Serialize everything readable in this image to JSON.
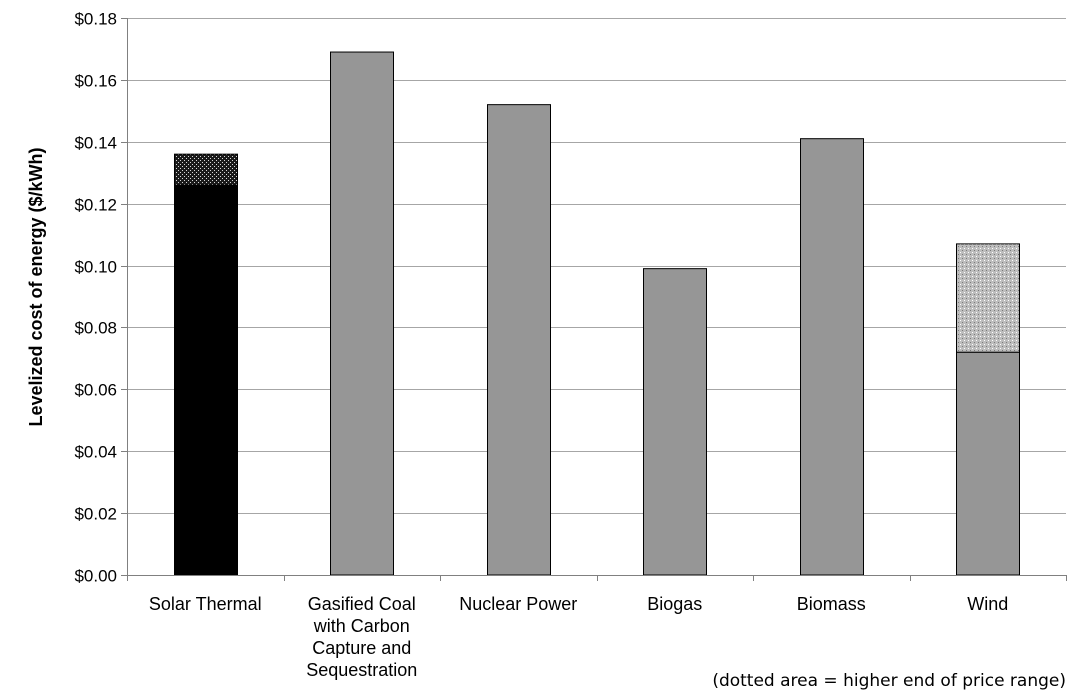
{
  "chart_data": {
    "type": "bar",
    "title": "",
    "xlabel": "",
    "ylabel": "Levelized cost of energy ($/kWh)",
    "ylim": [
      0,
      0.18
    ],
    "yticks": [
      0,
      0.02,
      0.04,
      0.06,
      0.08,
      0.1,
      0.12,
      0.14,
      0.16,
      0.18
    ],
    "ytick_labels": [
      "$0.00",
      "$0.02",
      "$0.04",
      "$0.06",
      "$0.08",
      "$0.10",
      "$0.12",
      "$0.14",
      "$0.16",
      "$0.18"
    ],
    "grid": true,
    "categories": [
      [
        "Solar Thermal"
      ],
      [
        "Gasified Coal",
        "with Carbon",
        "Capture and",
        "Sequestration"
      ],
      [
        "Nuclear Power"
      ],
      [
        "Biogas"
      ],
      [
        "Biomass"
      ],
      [
        "Wind"
      ]
    ],
    "series": [
      {
        "values": [
          0.126,
          0.169,
          0.152,
          0.099,
          0.141,
          0.072
        ]
      },
      {
        "values": [
          0.01,
          0,
          0,
          0,
          0,
          0.035
        ]
      }
    ],
    "annotation": "(dotted area = higher end of price range)"
  },
  "colors": {
    "solar": "#000000",
    "bar": "#969696",
    "grid": "#a6a6a6",
    "axis": "#808080"
  }
}
